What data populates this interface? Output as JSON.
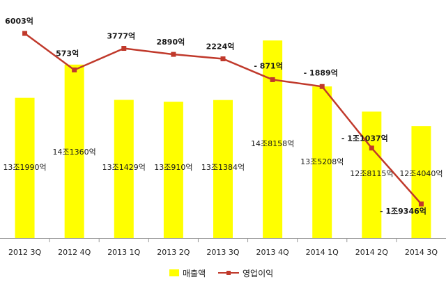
{
  "chart_data": {
    "type": "bar",
    "categories": [
      "2012 3Q",
      "2012 4Q",
      "2013 1Q",
      "2013 2Q",
      "2013 3Q",
      "2013 4Q",
      "2014 1Q",
      "2014 2Q",
      "2014 3Q"
    ],
    "series": [
      {
        "name": "매출액",
        "type": "bar",
        "color": "#ffff00",
        "values": [
          131990,
          141360,
          131429,
          130910,
          131384,
          148158,
          135208,
          128115,
          124040
        ],
        "labels": [
          "13조1990억",
          "14조1360억",
          "13조1429억",
          "13조910억",
          "13조1384억",
          "14조8158억",
          "13조5208억",
          "12조8115억",
          "12조4040억"
        ]
      },
      {
        "name": "영업이익",
        "type": "line",
        "color": "#c0392b",
        "values": [
          6003,
          573,
          3777,
          2890,
          2224,
          -871,
          -1889,
          -11037,
          -19346
        ],
        "labels": [
          "6003억",
          "573억",
          "3777억",
          "2890억",
          "2224억",
          "- 871억",
          "- 1889억",
          "- 1조1037억",
          "- 1조9346억"
        ]
      }
    ],
    "legend": "bottom",
    "grid": false
  }
}
